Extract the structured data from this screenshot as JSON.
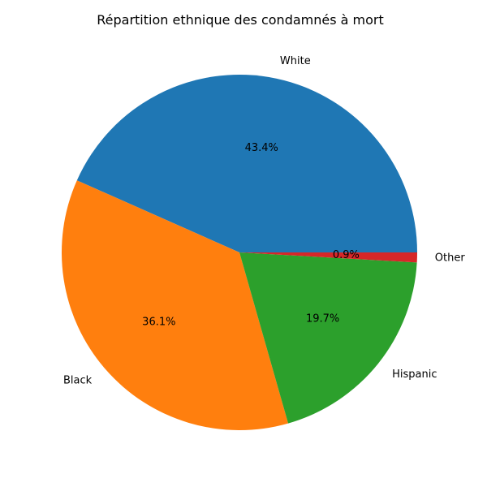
{
  "chart_data": {
    "type": "pie",
    "title": "Répartition ethnique des condamnés à mort",
    "categories": [
      "White",
      "Black",
      "Hispanic",
      "Other"
    ],
    "values": [
      43.4,
      36.1,
      19.7,
      0.9
    ],
    "percent_labels": [
      "43.4%",
      "36.1%",
      "19.7%",
      "0.9%"
    ],
    "colors": [
      "#1f77b4",
      "#ff7f0e",
      "#2ca02c",
      "#d62728"
    ],
    "start_angle_deg": 0,
    "direction": "counterclockwise"
  }
}
